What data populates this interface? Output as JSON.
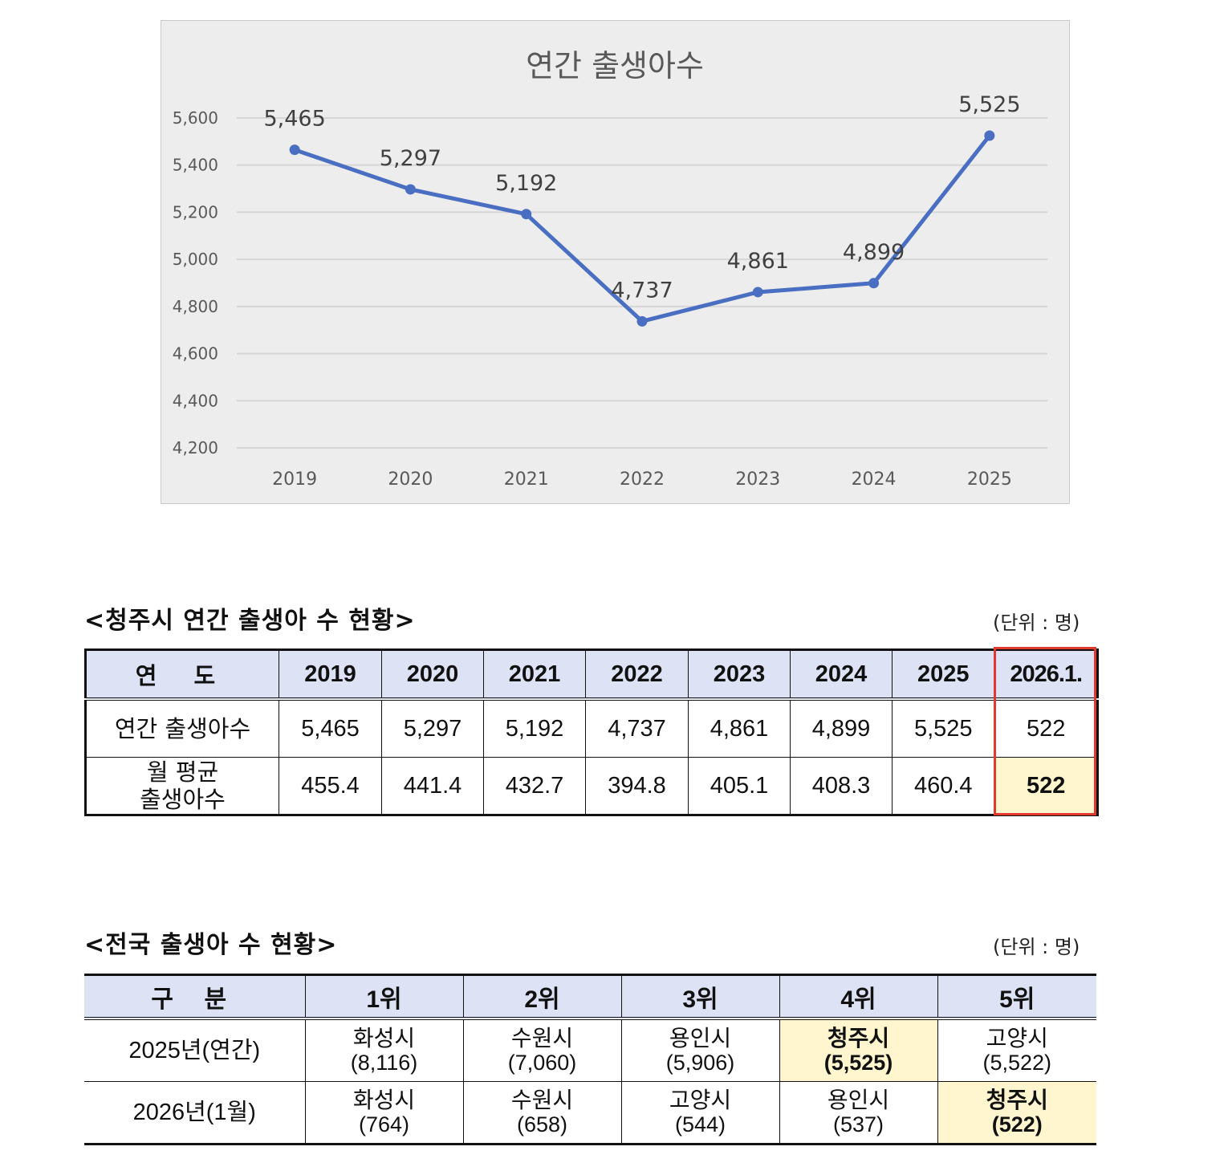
{
  "chart_data": {
    "type": "line",
    "title": "연간 출생아수",
    "categories": [
      "2019",
      "2020",
      "2021",
      "2022",
      "2023",
      "2024",
      "2025"
    ],
    "values": [
      5465,
      5297,
      5192,
      4737,
      4861,
      4899,
      5525
    ],
    "data_labels": [
      "5,465",
      "5,297",
      "5,192",
      "4,737",
      "4,861",
      "4,899",
      "5,525"
    ],
    "yticks": [
      4200,
      4400,
      4600,
      4800,
      5000,
      5200,
      5400,
      5600
    ],
    "ytick_labels": [
      "4,200",
      "4,400",
      "4,600",
      "4,800",
      "5,000",
      "5,200",
      "5,400",
      "5,600"
    ],
    "ylim": [
      4200,
      5600
    ],
    "xlabel": "",
    "ylabel": "",
    "grid": true,
    "line_color": "#4a6fc2",
    "background": "#ededed"
  },
  "table1": {
    "title": "<청주시 연간 출생아 수 현황>",
    "unit": "(단위 : 명)",
    "header_label": "연 도",
    "years": [
      "2019",
      "2020",
      "2021",
      "2022",
      "2023",
      "2024",
      "2025",
      "2026.1."
    ],
    "row1": {
      "label": "연간 출생아수",
      "values": [
        "5,465",
        "5,297",
        "5,192",
        "4,737",
        "4,861",
        "4,899",
        "5,525",
        "522"
      ]
    },
    "row2": {
      "label_line1": "월 평균",
      "label_line2": "출생아수",
      "values": [
        "455.4",
        "441.4",
        "432.7",
        "394.8",
        "405.1",
        "408.3",
        "460.4",
        "522"
      ]
    }
  },
  "table2": {
    "title": "<전국 출생아 수 현황>",
    "unit": "(단위 : 명)",
    "header_label": "구 분",
    "ranks": [
      "1위",
      "2위",
      "3위",
      "4위",
      "5위"
    ],
    "rows": [
      {
        "label": "2025년(연간)",
        "cells": [
          {
            "city": "화성시",
            "num": "(8,116)"
          },
          {
            "city": "수원시",
            "num": "(7,060)"
          },
          {
            "city": "용인시",
            "num": "(5,906)"
          },
          {
            "city": "청주시",
            "num": "(5,525)"
          },
          {
            "city": "고양시",
            "num": "(5,522)"
          }
        ]
      },
      {
        "label": "2026년(1월)",
        "cells": [
          {
            "city": "화성시",
            "num": "(764)"
          },
          {
            "city": "수원시",
            "num": "(658)"
          },
          {
            "city": "고양시",
            "num": "(544)"
          },
          {
            "city": "용인시",
            "num": "(537)"
          },
          {
            "city": "청주시",
            "num": "(522)"
          }
        ]
      }
    ],
    "highlight_color": "#fff6cf"
  }
}
